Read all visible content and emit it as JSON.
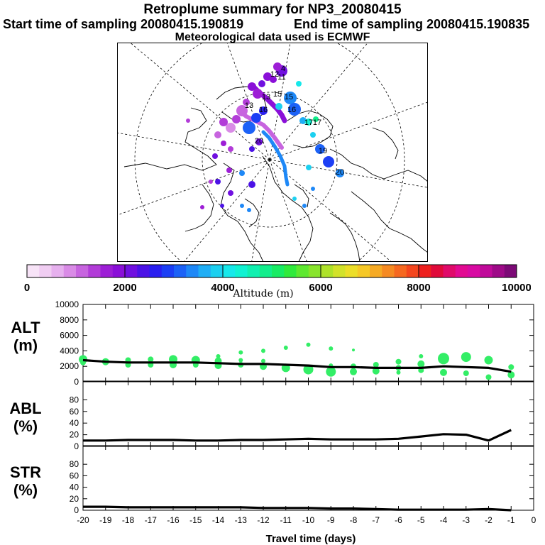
{
  "header": {
    "title": "Retroplume summary for NP3_20080415",
    "start": "Start time of sampling 20080415.190819",
    "end": "End time of sampling 20080415.190835",
    "met": "Meteorological data used is ECMWF"
  },
  "map": {
    "day_labels": [
      "13",
      "13",
      "15",
      "15",
      "16",
      "16",
      "17",
      "17",
      "19",
      "20",
      "20",
      "4",
      "11",
      "12"
    ]
  },
  "colorbar": {
    "ticks": [
      "0",
      "2000",
      "4000",
      "6000",
      "8000",
      "10000"
    ],
    "label": "Altitude (m)"
  },
  "colors": {
    "scatter": "#33ee66",
    "line": "#000000"
  },
  "chart_data": [
    {
      "type": "line",
      "name": "ALT",
      "ylabel_1": "ALT",
      "ylabel_2": "(m)",
      "ylim": [
        0,
        10000
      ],
      "yticks": [
        "0",
        "2000",
        "4000",
        "6000",
        "8000",
        "10000"
      ],
      "x": [
        -20,
        -19,
        -18,
        -17,
        -16,
        -15,
        -14,
        -13,
        -12,
        -11,
        -10,
        -9,
        -8,
        -7,
        -6,
        -5,
        -4,
        -3,
        -2,
        -1
      ],
      "values": [
        2800,
        2600,
        2500,
        2500,
        2500,
        2500,
        2400,
        2300,
        2300,
        2200,
        2100,
        1900,
        1900,
        1800,
        1800,
        1800,
        2000,
        1900,
        1800,
        1300
      ],
      "scatter_points": [
        [
          -20,
          2900,
          6
        ],
        [
          -20,
          2500,
          4
        ],
        [
          -19,
          2600,
          5
        ],
        [
          -18,
          2800,
          4
        ],
        [
          -18,
          2200,
          4
        ],
        [
          -17,
          2900,
          4
        ],
        [
          -17,
          2200,
          4
        ],
        [
          -16,
          2900,
          6
        ],
        [
          -16,
          2200,
          5
        ],
        [
          -15,
          2800,
          6
        ],
        [
          -15,
          2200,
          4
        ],
        [
          -14,
          3300,
          3
        ],
        [
          -14,
          2700,
          5
        ],
        [
          -14,
          2100,
          5
        ],
        [
          -13,
          3800,
          3
        ],
        [
          -13,
          2800,
          3
        ],
        [
          -13,
          2200,
          4
        ],
        [
          -12,
          4000,
          3
        ],
        [
          -12,
          2700,
          3
        ],
        [
          -12,
          2000,
          5
        ],
        [
          -11,
          4400,
          3
        ],
        [
          -11,
          1800,
          6
        ],
        [
          -10,
          4800,
          3
        ],
        [
          -10,
          1600,
          7
        ],
        [
          -9,
          4300,
          3
        ],
        [
          -9,
          2100,
          3
        ],
        [
          -9,
          1300,
          7
        ],
        [
          -8,
          4100,
          2
        ],
        [
          -8,
          2000,
          4
        ],
        [
          -8,
          1300,
          5
        ],
        [
          -7,
          2200,
          4
        ],
        [
          -7,
          1400,
          5
        ],
        [
          -6,
          2600,
          4
        ],
        [
          -6,
          1800,
          4
        ],
        [
          -6,
          1200,
          3
        ],
        [
          -5,
          3300,
          3
        ],
        [
          -5,
          2300,
          5
        ],
        [
          -5,
          1500,
          4
        ],
        [
          -4,
          3000,
          8
        ],
        [
          -4,
          1200,
          5
        ],
        [
          -3,
          3200,
          7
        ],
        [
          -3,
          1100,
          4
        ],
        [
          -2,
          2800,
          6
        ],
        [
          -2,
          600,
          4
        ],
        [
          -1,
          1900,
          4
        ],
        [
          -1,
          900,
          5
        ]
      ]
    },
    {
      "type": "line",
      "name": "ABL",
      "ylabel_1": "ABL",
      "ylabel_2": "(%)",
      "ylim": [
        0,
        100
      ],
      "yticks": [
        "0",
        "20",
        "40",
        "60",
        "80"
      ],
      "x": [
        -20,
        -19,
        -18,
        -17,
        -16,
        -15,
        -14,
        -13,
        -12,
        -11,
        -10,
        -9,
        -8,
        -7,
        -6,
        -5,
        -4,
        -3,
        -2,
        -1
      ],
      "values": [
        10,
        10,
        11,
        11,
        11,
        10,
        10,
        11,
        11,
        12,
        13,
        12,
        12,
        12,
        13,
        17,
        21,
        20,
        10,
        28
      ]
    },
    {
      "type": "line",
      "name": "STR",
      "ylabel_1": "STR",
      "ylabel_2": "(%)",
      "ylim": [
        0,
        100
      ],
      "yticks": [
        "0",
        "20",
        "40",
        "60",
        "80"
      ],
      "x": [
        -20,
        -19,
        -18,
        -17,
        -16,
        -15,
        -14,
        -13,
        -12,
        -11,
        -10,
        -9,
        -8,
        -7,
        -6,
        -5,
        -4,
        -3,
        -2,
        -1
      ],
      "values": [
        6,
        6,
        5,
        5,
        5,
        5,
        5,
        5,
        4,
        4,
        4,
        3,
        3,
        2,
        1,
        1,
        1,
        1,
        2,
        0
      ]
    }
  ],
  "xaxis": {
    "label": "Travel time (days)",
    "ticks": [
      "-20",
      "-19",
      "-18",
      "-17",
      "-16",
      "-15",
      "-14",
      "-13",
      "-12",
      "-11",
      "-10",
      "-9",
      "-8",
      "-7",
      "-6",
      "-5",
      "-4",
      "-3",
      "-2",
      "-1",
      "0"
    ]
  }
}
